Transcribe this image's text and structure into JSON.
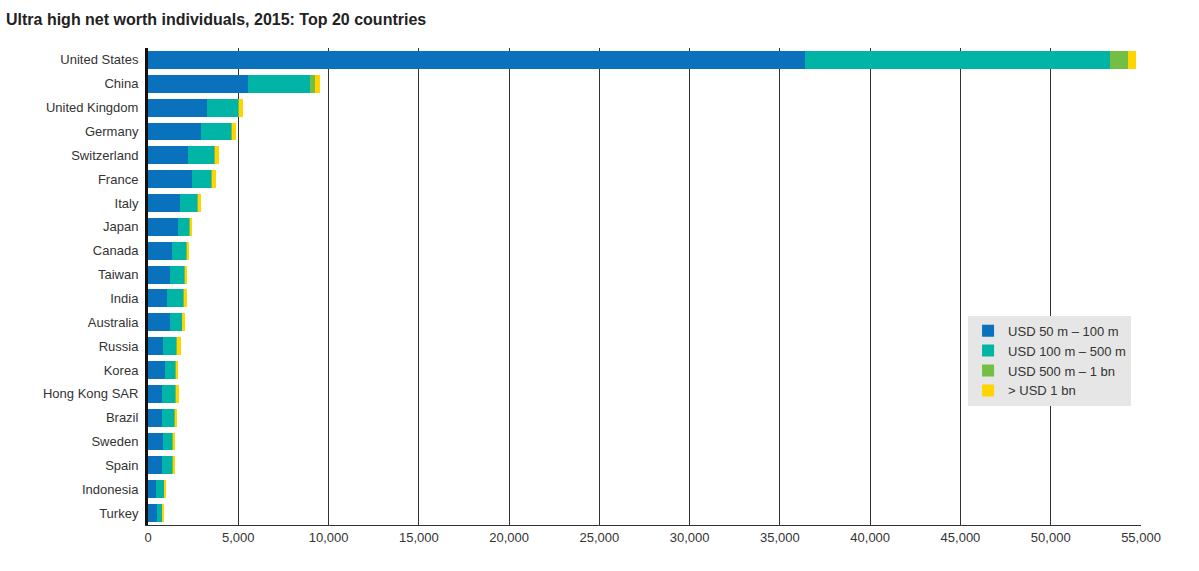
{
  "chart_data": {
    "type": "bar",
    "title": "Ultra high net worth individuals, 2015: Top 20 countries",
    "orientation": "horizontal",
    "stacked": true,
    "grid": true,
    "legend": "bottom right",
    "categories": [
      "United States",
      "China",
      "United Kingdom",
      "Germany",
      "Switzerland",
      "France",
      "Italy",
      "Japan",
      "Canada",
      "Taiwan",
      "India",
      "Australia",
      "Russia",
      "Korea",
      "Hong Kong SAR",
      "Brazil",
      "Sweden",
      "Spain",
      "Indonesia",
      "Turkey"
    ],
    "series": [
      {
        "name": "USD 50 m – 100 m",
        "color": "#0a72bd",
        "values": [
          36400,
          5540,
          3270,
          2940,
          2220,
          2440,
          1770,
          1660,
          1330,
          1220,
          1050,
          1220,
          830,
          940,
          780,
          780,
          830,
          780,
          440,
          500
        ]
      },
      {
        "name": "USD 100 m – 500 m",
        "color": "#00b5a5",
        "values": [
          16870,
          3440,
          1720,
          1660,
          1440,
          1050,
          950,
          610,
          780,
          780,
          890,
          660,
          720,
          560,
          720,
          660,
          500,
          550,
          450,
          280
        ]
      },
      {
        "name": "USD 500 m – 1 bn",
        "color": "#72bf44",
        "values": [
          1000,
          280,
          60,
          60,
          60,
          50,
          40,
          30,
          30,
          30,
          30,
          30,
          40,
          30,
          40,
          30,
          30,
          30,
          20,
          20
        ]
      },
      {
        "name": "> USD 1 bn",
        "color": "#ffd400",
        "values": [
          450,
          270,
          220,
          220,
          220,
          230,
          180,
          140,
          130,
          130,
          190,
          140,
          240,
          130,
          180,
          140,
          140,
          140,
          90,
          90
        ]
      }
    ],
    "xlim": [
      0,
      55000
    ],
    "xticks": [
      0,
      {
        "value": 5000,
        "label": "5,000"
      },
      {
        "value": 10000,
        "label": "10,000"
      },
      {
        "value": 15000,
        "label": "15,000"
      },
      {
        "value": 20000,
        "label": "20,000"
      },
      {
        "value": 25000,
        "label": "25,000"
      },
      {
        "value": 30000,
        "label": "30,000"
      },
      {
        "value": 35000,
        "label": "35,000"
      },
      {
        "value": 40000,
        "label": "40,000"
      },
      {
        "value": 45000,
        "label": "45,000"
      },
      {
        "value": 50000,
        "label": "50,000"
      },
      {
        "value": 55000,
        "label": "55,000"
      }
    ]
  }
}
